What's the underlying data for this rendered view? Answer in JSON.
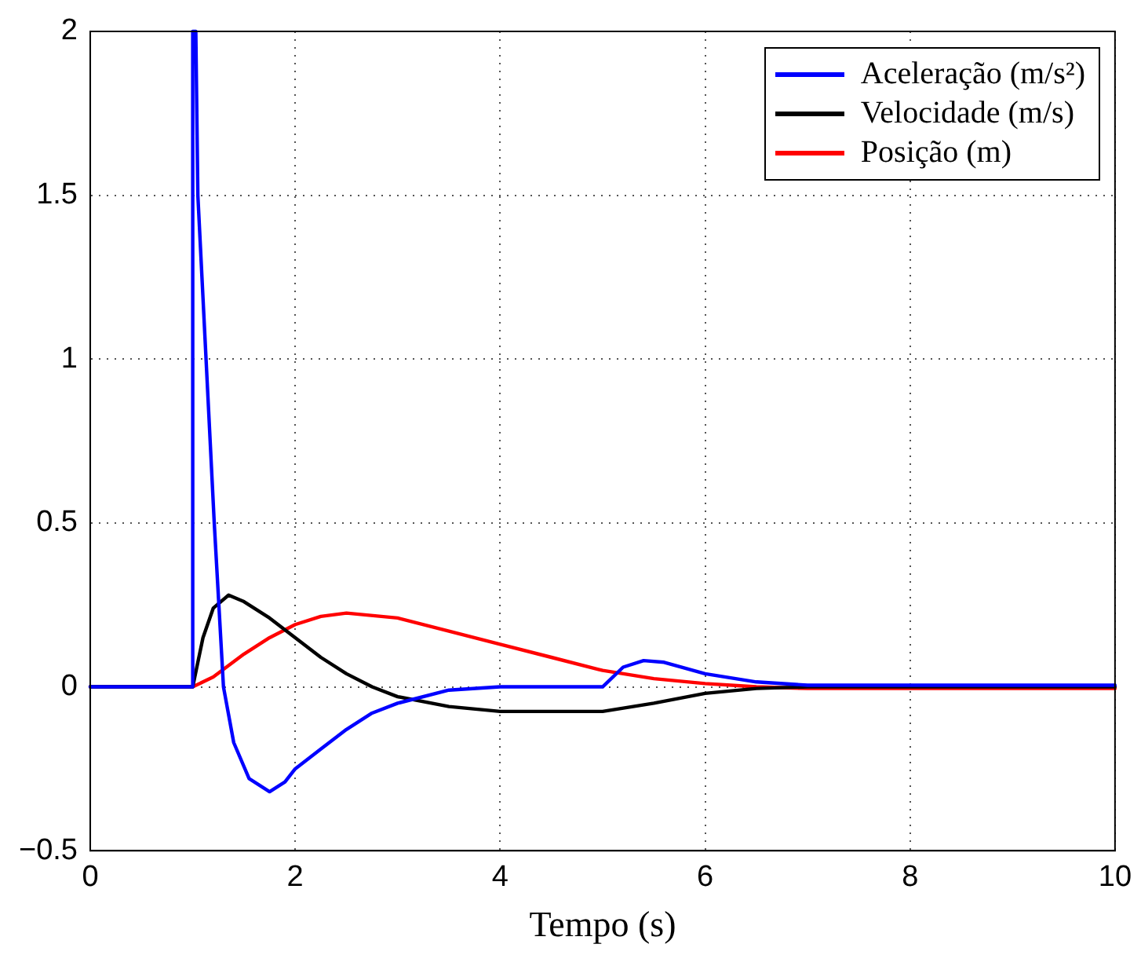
{
  "chart_data": {
    "type": "line",
    "xlabel": "Tempo (s)",
    "xlim": [
      0,
      10
    ],
    "ylim": [
      -0.5,
      2
    ],
    "xticks": [
      0,
      2,
      4,
      6,
      8,
      10
    ],
    "yticks": [
      {
        "value": -0.5,
        "label": "−0.5"
      },
      0,
      0.5,
      1,
      1.5,
      2
    ],
    "grid": true,
    "legend": "top right",
    "marker": "none",
    "line_style": "solid",
    "series": [
      {
        "name": "Aceleração (m/s²)",
        "color": "#0000ff",
        "x": [
          0,
          0.99,
          1.0,
          1.03,
          1.05,
          1.13,
          1.21,
          1.3,
          1.4,
          1.55,
          1.75,
          1.9,
          2.0,
          2.25,
          2.5,
          2.75,
          3.0,
          3.5,
          4.0,
          4.5,
          5.0,
          5.2,
          5.4,
          5.6,
          6.0,
          6.5,
          7.0,
          8.0,
          10.0
        ],
        "values": [
          0,
          0,
          2,
          2,
          1.5,
          1,
          0.5,
          0,
          -0.17,
          -0.28,
          -0.32,
          -0.29,
          -0.25,
          -0.19,
          -0.13,
          -0.08,
          -0.05,
          -0.01,
          0,
          0,
          0,
          0.06,
          0.08,
          0.075,
          0.04,
          0.015,
          0.005,
          0.005,
          0.005
        ]
      },
      {
        "name": "Velocidade (m/s)",
        "color": "#000000",
        "x": [
          0,
          1.0,
          1.1,
          1.2,
          1.35,
          1.5,
          1.75,
          2.0,
          2.25,
          2.5,
          2.75,
          3.0,
          3.5,
          4.0,
          5.0,
          5.5,
          6.0,
          6.5,
          7.0,
          10.0
        ],
        "values": [
          0,
          0,
          0.15,
          0.24,
          0.28,
          0.26,
          0.21,
          0.15,
          0.09,
          0.04,
          0.0,
          -0.03,
          -0.06,
          -0.075,
          -0.075,
          -0.05,
          -0.02,
          -0.005,
          0,
          0
        ]
      },
      {
        "name": "Posição (m)",
        "color": "#ff0000",
        "x": [
          0,
          1.0,
          1.2,
          1.5,
          1.75,
          2.0,
          2.25,
          2.5,
          3.0,
          3.5,
          4.0,
          4.5,
          5.0,
          5.5,
          6.0,
          6.5,
          7.0,
          10.0
        ],
        "values": [
          0,
          0,
          0.03,
          0.1,
          0.15,
          0.19,
          0.215,
          0.225,
          0.21,
          0.17,
          0.13,
          0.09,
          0.05,
          0.025,
          0.01,
          0.0,
          -0.005,
          -0.005
        ]
      }
    ]
  }
}
